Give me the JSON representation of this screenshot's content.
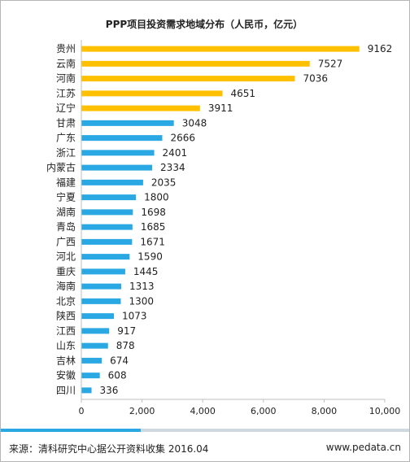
{
  "chart_data": {
    "type": "bar",
    "orientation": "horizontal",
    "title": "PPP项目投资需求地域分布（人民币，亿元）",
    "categories": [
      "贵州",
      "云南",
      "河南",
      "江苏",
      "辽宁",
      "甘肃",
      "广东",
      "浙江",
      "内蒙古",
      "福建",
      "宁夏",
      "湖南",
      "青岛",
      "广西",
      "河北",
      "重庆",
      "海南",
      "北京",
      "陕西",
      "江西",
      "山东",
      "吉林",
      "安徽",
      "四川"
    ],
    "values": [
      9162,
      7527,
      7036,
      4651,
      3911,
      3048,
      2666,
      2401,
      2334,
      2035,
      1800,
      1698,
      1685,
      1671,
      1590,
      1445,
      1313,
      1300,
      1073,
      917,
      878,
      674,
      608,
      336
    ],
    "highlight_count": 5,
    "xlim": [
      0,
      10000
    ],
    "x_ticks": [
      "0",
      "2,000",
      "4,000",
      "6,000",
      "8,000",
      "10,000"
    ],
    "grid": false,
    "xlabel": "",
    "ylabel": ""
  },
  "colors": {
    "highlight": "#ffc000",
    "normal": "#29a8e3",
    "axis": "#bfbfbf"
  },
  "footer": {
    "source": "来源：清科研究中心据公开资料收集 2016.04",
    "site": "www.pedata.cn"
  }
}
